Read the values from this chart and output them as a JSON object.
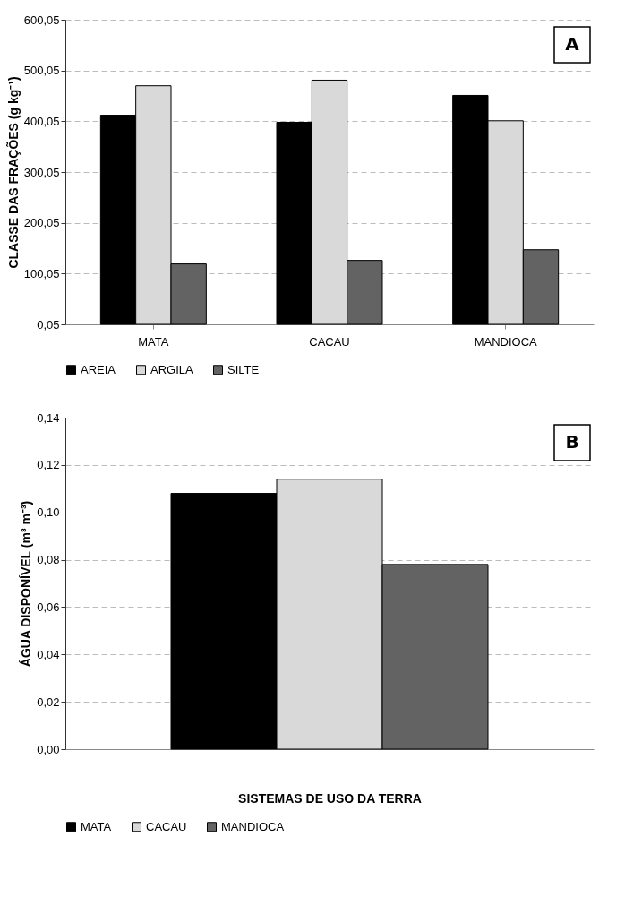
{
  "chart_data": [
    {
      "type": "bar",
      "ylabel": "CLASSE DAS FRAÇÕES (g kg⁻¹)",
      "categories": [
        "MATA",
        "CACAU",
        "MANDIOCA"
      ],
      "series": [
        {
          "name": "AREIA",
          "color": "#000000",
          "values": [
            412,
            398,
            451
          ]
        },
        {
          "name": "ARGILA",
          "color": "#d9d9d9",
          "values": [
            470,
            481,
            401
          ]
        },
        {
          "name": "SILTE",
          "color": "#636363",
          "values": [
            119,
            126,
            147
          ]
        }
      ],
      "ylim": [
        0.05,
        600.05
      ],
      "yticks": [
        {
          "value": 0.05,
          "label": "0,05"
        },
        {
          "value": 100.05,
          "label": "100,05"
        },
        {
          "value": 200.05,
          "label": "200,05"
        },
        {
          "value": 300.05,
          "label": "300,05"
        },
        {
          "value": 400.05,
          "label": "400,05"
        },
        {
          "value": 500.05,
          "label": "500,05"
        },
        {
          "value": 600.05,
          "label": "600,05"
        }
      ],
      "grid": "y",
      "legend": "bottom",
      "annotations": [
        "A"
      ]
    },
    {
      "type": "bar",
      "xlabel": "SISTEMAS DE USO DA TERRA",
      "ylabel": "ÁGUA DISPONÍVEL (m³ m⁻³)",
      "categories": [
        null
      ],
      "series": [
        {
          "name": "MATA",
          "color": "#000000",
          "values": [
            0.108
          ]
        },
        {
          "name": "CACAU",
          "color": "#d9d9d9",
          "values": [
            0.114
          ]
        },
        {
          "name": "MANDIOCA",
          "color": "#636363",
          "values": [
            0.078
          ]
        }
      ],
      "ylim": [
        0,
        0.14
      ],
      "yticks": [
        {
          "value": 0,
          "label": "0,00"
        },
        {
          "value": 0.02,
          "label": "0,02"
        },
        {
          "value": 0.04,
          "label": "0,04"
        },
        {
          "value": 0.06,
          "label": "0,06"
        },
        {
          "value": 0.08,
          "label": "0,08"
        },
        {
          "value": 0.1,
          "label": "0,10"
        },
        {
          "value": 0.12,
          "label": "0,12"
        },
        {
          "value": 0.14,
          "label": "0,14"
        }
      ],
      "grid": "y",
      "legend": "bottom",
      "annotations": [
        "B"
      ]
    }
  ]
}
